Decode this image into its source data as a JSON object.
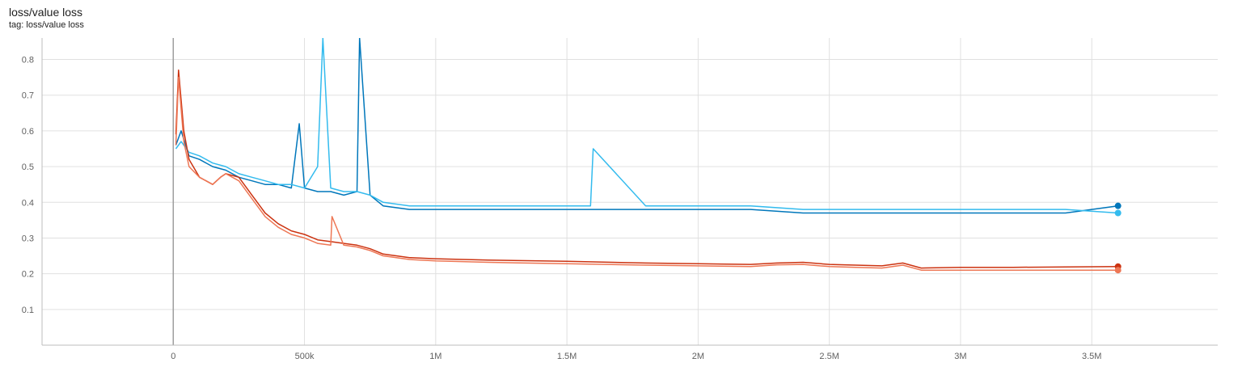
{
  "header": {
    "title": "loss/value loss",
    "tag": "tag: loss/value loss"
  },
  "chart_data": {
    "type": "line",
    "title": "loss/value loss",
    "xlabel": "",
    "ylabel": "",
    "xlim": [
      -500000,
      3980000
    ],
    "ylim": [
      0,
      0.86
    ],
    "x_ticks": [
      0,
      500000,
      1000000,
      1500000,
      2000000,
      2500000,
      3000000,
      3500000
    ],
    "x_tick_labels": [
      "0",
      "500k",
      "1M",
      "1.5M",
      "2M",
      "2.5M",
      "3M",
      "3.5M"
    ],
    "y_ticks": [
      0.1,
      0.2,
      0.3,
      0.4,
      0.5,
      0.6,
      0.7,
      0.8
    ],
    "y_tick_labels": [
      "0.1",
      "0.2",
      "0.3",
      "0.4",
      "0.5",
      "0.6",
      "0.7",
      "0.8"
    ],
    "grid": true,
    "legend": "none",
    "series": [
      {
        "color": "#0077bb",
        "x": [
          10000,
          30000,
          60000,
          100000,
          150000,
          200000,
          250000,
          300000,
          350000,
          400000,
          450000,
          480000,
          500000,
          550000,
          600000,
          650000,
          700000,
          710000,
          750000,
          800000,
          900000,
          1000000,
          1200000,
          1400000,
          1600000,
          1800000,
          2000000,
          2200000,
          2400000,
          2600000,
          2800000,
          3000000,
          3200000,
          3400000,
          3600000
        ],
        "y": [
          0.56,
          0.6,
          0.53,
          0.52,
          0.5,
          0.49,
          0.47,
          0.46,
          0.45,
          0.45,
          0.44,
          0.62,
          0.44,
          0.43,
          0.43,
          0.42,
          0.43,
          0.86,
          0.42,
          0.39,
          0.38,
          0.38,
          0.38,
          0.38,
          0.38,
          0.38,
          0.38,
          0.38,
          0.37,
          0.37,
          0.37,
          0.37,
          0.37,
          0.37,
          0.39
        ]
      },
      {
        "color": "#33bbee",
        "x": [
          10000,
          30000,
          60000,
          100000,
          150000,
          200000,
          250000,
          300000,
          350000,
          400000,
          450000,
          500000,
          550000,
          570000,
          600000,
          650000,
          700000,
          750000,
          800000,
          900000,
          1000000,
          1200000,
          1400000,
          1590000,
          1600000,
          1800000,
          2000000,
          2200000,
          2400000,
          2600000,
          2800000,
          3000000,
          3200000,
          3400000,
          3600000
        ],
        "y": [
          0.55,
          0.57,
          0.54,
          0.53,
          0.51,
          0.5,
          0.48,
          0.47,
          0.46,
          0.45,
          0.45,
          0.44,
          0.5,
          0.86,
          0.44,
          0.43,
          0.43,
          0.42,
          0.4,
          0.39,
          0.39,
          0.39,
          0.39,
          0.39,
          0.55,
          0.39,
          0.39,
          0.39,
          0.38,
          0.38,
          0.38,
          0.38,
          0.38,
          0.38,
          0.37
        ]
      },
      {
        "color": "#cc3311",
        "x": [
          10000,
          20000,
          40000,
          60000,
          100000,
          150000,
          180000,
          200000,
          250000,
          300000,
          350000,
          400000,
          450000,
          500000,
          550000,
          600000,
          650000,
          700000,
          750000,
          800000,
          900000,
          1000000,
          1200000,
          1500000,
          1800000,
          2000000,
          2200000,
          2300000,
          2400000,
          2500000,
          2600000,
          2700000,
          2780000,
          2850000,
          3000000,
          3200000,
          3400000,
          3600000
        ],
        "y": [
          0.59,
          0.77,
          0.6,
          0.52,
          0.47,
          0.45,
          0.47,
          0.48,
          0.47,
          0.42,
          0.37,
          0.34,
          0.32,
          0.31,
          0.295,
          0.29,
          0.285,
          0.28,
          0.27,
          0.255,
          0.245,
          0.242,
          0.238,
          0.235,
          0.23,
          0.228,
          0.226,
          0.23,
          0.232,
          0.226,
          0.224,
          0.222,
          0.23,
          0.216,
          0.218,
          0.218,
          0.219,
          0.22
        ]
      },
      {
        "color": "#ee7755",
        "x": [
          10000,
          20000,
          40000,
          60000,
          100000,
          150000,
          180000,
          200000,
          250000,
          300000,
          350000,
          400000,
          450000,
          500000,
          550000,
          600000,
          605000,
          650000,
          700000,
          750000,
          800000,
          900000,
          1000000,
          1200000,
          1500000,
          1800000,
          2000000,
          2200000,
          2300000,
          2400000,
          2500000,
          2600000,
          2700000,
          2780000,
          2850000,
          3000000,
          3200000,
          3400000,
          3600000
        ],
        "y": [
          0.56,
          0.75,
          0.57,
          0.5,
          0.47,
          0.45,
          0.47,
          0.48,
          0.46,
          0.41,
          0.36,
          0.33,
          0.31,
          0.3,
          0.285,
          0.28,
          0.36,
          0.28,
          0.275,
          0.265,
          0.25,
          0.24,
          0.236,
          0.232,
          0.228,
          0.224,
          0.222,
          0.22,
          0.225,
          0.226,
          0.22,
          0.218,
          0.216,
          0.224,
          0.21,
          0.21,
          0.21,
          0.21,
          0.21
        ]
      }
    ]
  }
}
